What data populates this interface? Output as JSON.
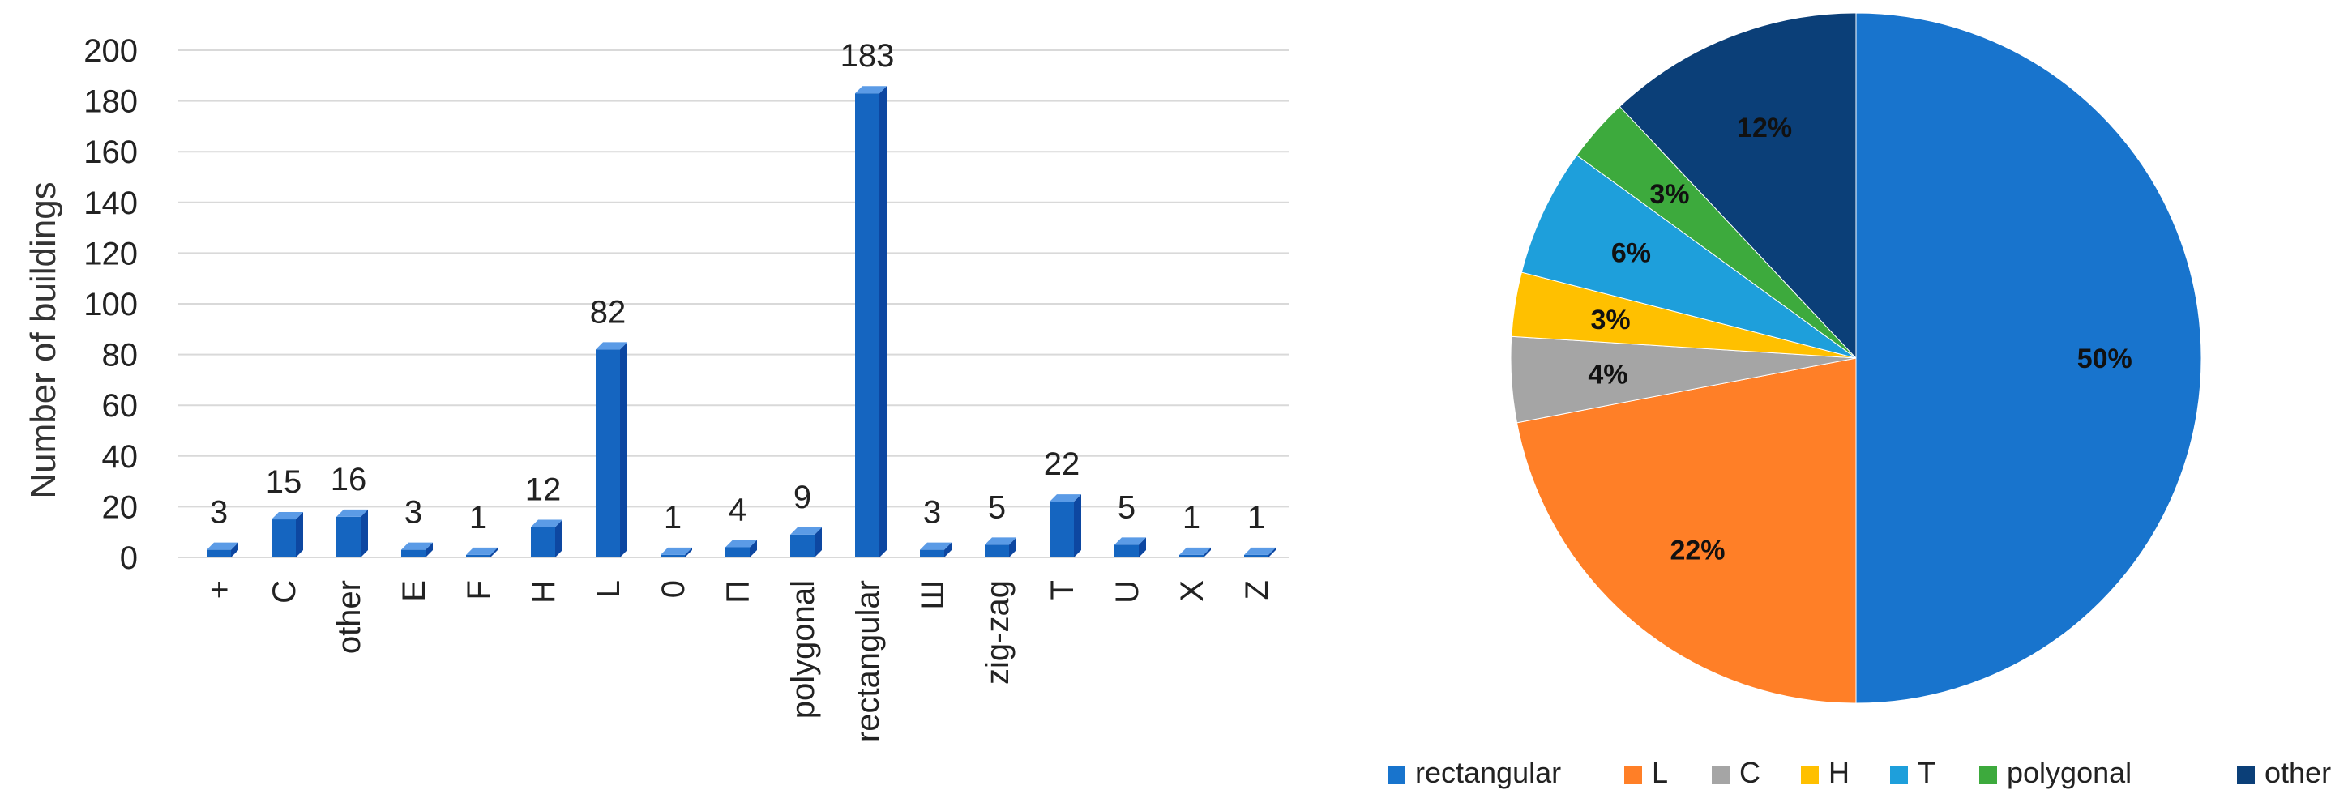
{
  "chart_data": [
    {
      "type": "bar",
      "ylabel": "Number of buildings",
      "xlabel": "",
      "ylim": [
        0,
        200
      ],
      "yticks": [
        0,
        20,
        40,
        60,
        80,
        100,
        120,
        140,
        160,
        180,
        200
      ],
      "grid": true,
      "categories": [
        "+",
        "C",
        "other",
        "E",
        "F",
        "H",
        "L",
        "0",
        "П",
        "polygonal",
        "rectangular",
        "Ш",
        "zig-zag",
        "T",
        "U",
        "X",
        "Z"
      ],
      "values": [
        3,
        15,
        16,
        3,
        1,
        12,
        82,
        1,
        4,
        9,
        183,
        3,
        5,
        22,
        5,
        1,
        1
      ],
      "color": "#1565C0"
    },
    {
      "type": "pie",
      "labels": [
        "rectangular",
        "L",
        "C",
        "H",
        "T",
        "polygonal",
        "other"
      ],
      "values": [
        50,
        22,
        4,
        3,
        6,
        3,
        12
      ],
      "value_labels": [
        "50%",
        "22%",
        "4%",
        "3%",
        "6%",
        "3%",
        "12%"
      ],
      "colors": [
        "#1874CD",
        "#FF7F27",
        "#A5A5A5",
        "#FFC000",
        "#1E9FDB",
        "#3DAA3D",
        "#0B3F78"
      ],
      "legend_position": "bottom"
    }
  ]
}
